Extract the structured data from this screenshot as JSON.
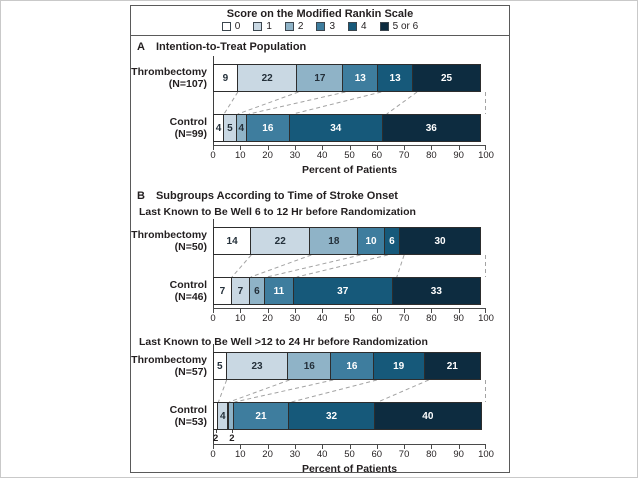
{
  "legend": {
    "title": "Score on the Modified Rankin Scale",
    "items": [
      {
        "label": "0",
        "color": "#ffffff"
      },
      {
        "label": "1",
        "color": "#c9d8e3"
      },
      {
        "label": "2",
        "color": "#8fb3c7"
      },
      {
        "label": "3",
        "color": "#3e7d9e"
      },
      {
        "label": "4",
        "color": "#16597a"
      },
      {
        "label": "5 or 6",
        "color": "#0d2c40"
      }
    ]
  },
  "panels": {
    "a": {
      "letter": "A",
      "title": "Intention-to-Treat Population"
    },
    "b": {
      "letter": "B",
      "title": "Subgroups According to Time of Stroke Onset",
      "subgroup1": "Last Known to Be Well 6 to 12 Hr before Randomization",
      "subgroup2": "Last Known to Be Well >12 to 24 Hr before Randomization"
    }
  },
  "chart_data": {
    "type": "bar",
    "variant": "horizontal-stacked",
    "categories": [
      "0",
      "1",
      "2",
      "3",
      "4",
      "5 or 6"
    ],
    "colors": [
      "#ffffff",
      "#c9d8e3",
      "#8fb3c7",
      "#3e7d9e",
      "#16597a",
      "#0d2c40"
    ],
    "xlabel": "Percent of Patients",
    "xlim": [
      0,
      100
    ],
    "xtick_step": 10,
    "charts": [
      {
        "key": "intention-to-treat",
        "rows": [
          {
            "group": "Thrombectomy",
            "n_label": "(N=107)",
            "values": [
              9,
              22,
              17,
              13,
              13,
              25
            ]
          },
          {
            "group": "Control",
            "n_label": "(N=99)",
            "values": [
              4,
              5,
              4,
              16,
              34,
              36
            ]
          }
        ],
        "show_xlabel": true
      },
      {
        "key": "well-6-to-12-hr",
        "rows": [
          {
            "group": "Thrombectomy",
            "n_label": "(N=50)",
            "values": [
              14,
              22,
              18,
              10,
              6,
              30
            ]
          },
          {
            "group": "Control",
            "n_label": "(N=46)",
            "values": [
              7,
              7,
              6,
              11,
              37,
              33
            ]
          }
        ],
        "show_xlabel": false
      },
      {
        "key": "well-12-to-24-hr",
        "rows": [
          {
            "group": "Thrombectomy",
            "n_label": "(N=57)",
            "values": [
              5,
              23,
              16,
              16,
              19,
              21
            ]
          },
          {
            "group": "Control",
            "n_label": "(N=53)",
            "values": [
              2,
              4,
              2,
              21,
              32,
              40
            ]
          }
        ],
        "show_xlabel": true
      }
    ]
  }
}
